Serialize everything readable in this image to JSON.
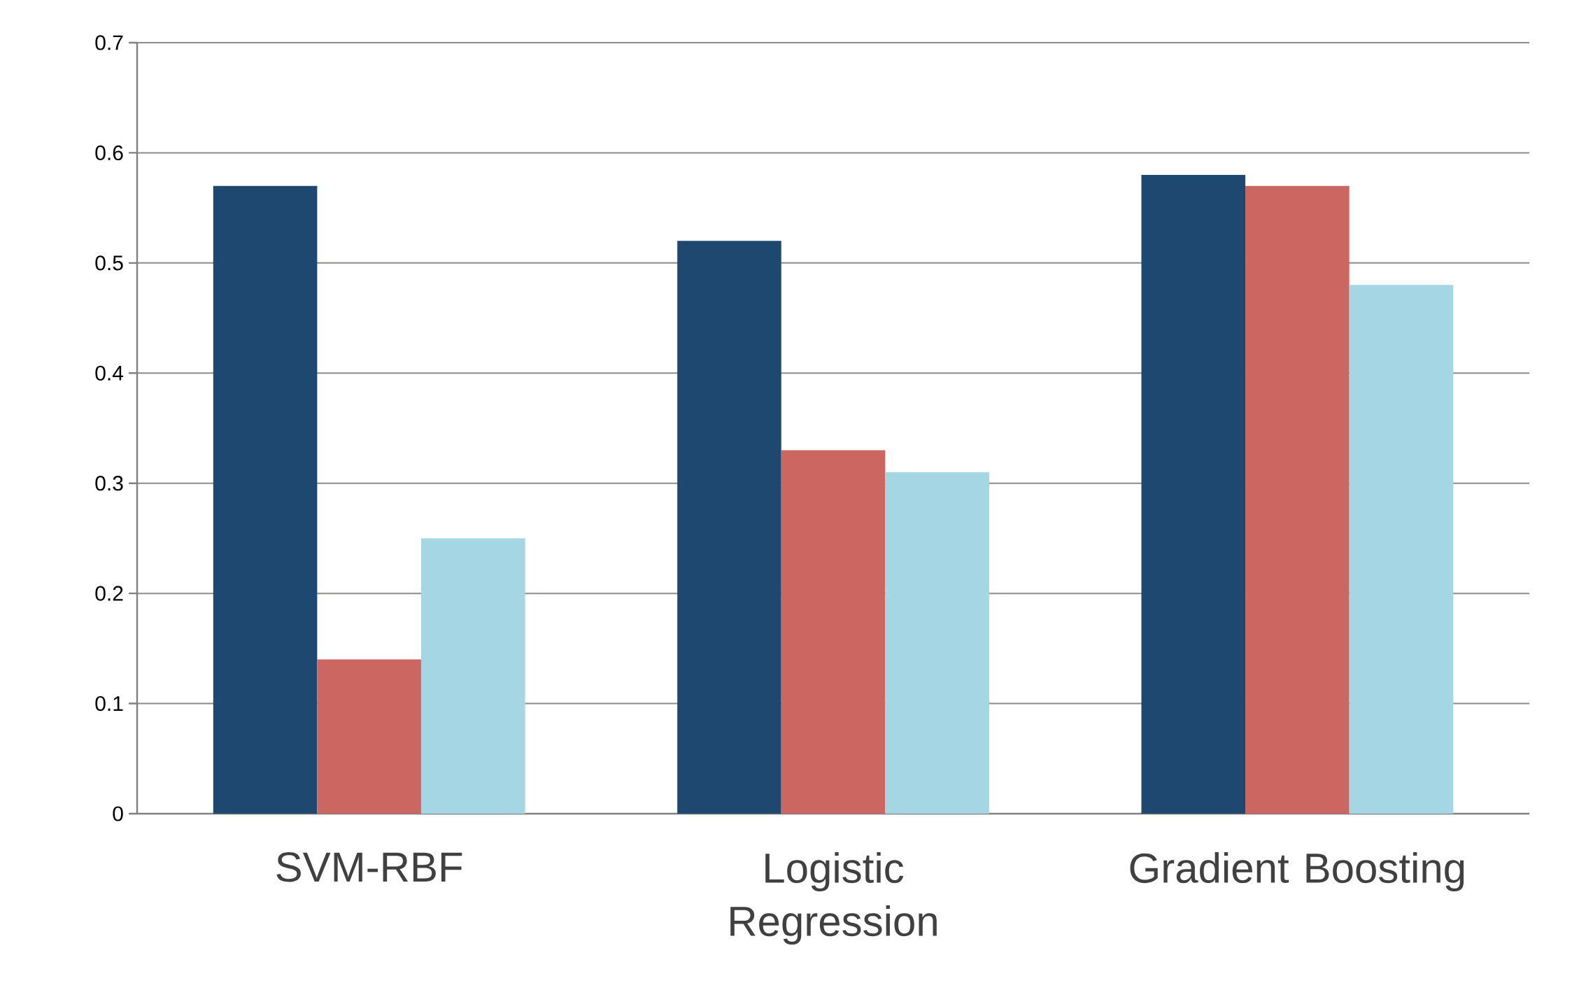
{
  "chart_data": {
    "type": "bar",
    "categories": [
      "SVM-RBF",
      "Logistic Regression",
      "Gradient Boosting"
    ],
    "series": [
      {
        "color": "#1f4870",
        "values": [
          0.57,
          0.52,
          0.58
        ]
      },
      {
        "color": "#cc6660",
        "values": [
          0.14,
          0.33,
          0.57
        ]
      },
      {
        "color": "#a4d6e3",
        "values": [
          0.25,
          0.31,
          0.48
        ]
      }
    ],
    "ylim": [
      0,
      0.7
    ],
    "yticks": [
      0,
      0.1,
      0.2,
      0.3,
      0.4,
      0.5,
      0.6,
      0.7
    ],
    "grid": "y"
  }
}
